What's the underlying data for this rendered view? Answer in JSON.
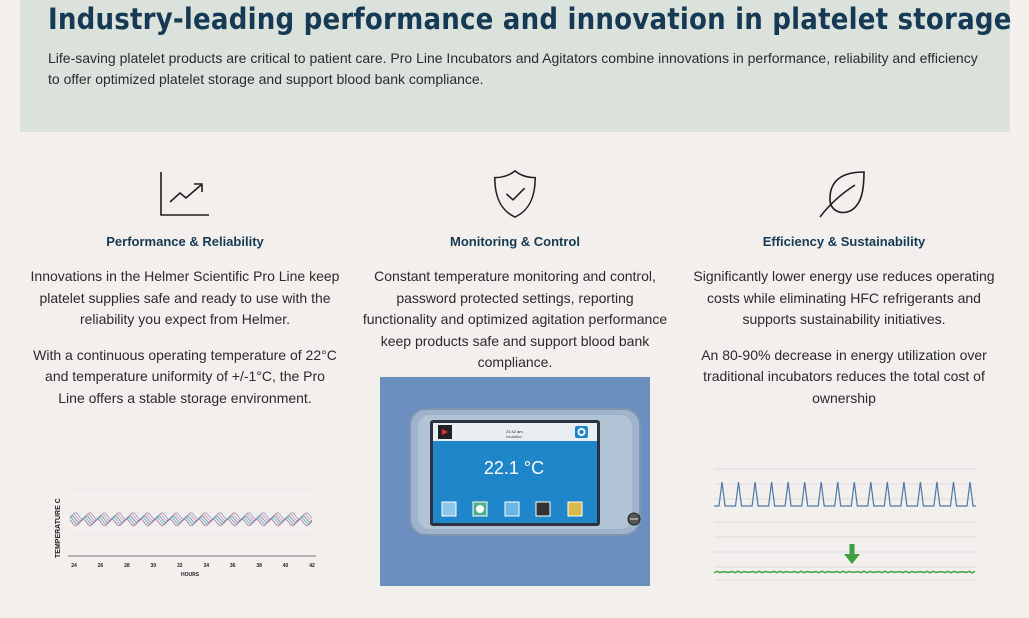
{
  "hero": {
    "title": "Industry-leading performance and innovation in platelet storage",
    "description": "Life-saving platelet products are critical to patient care. Pro Line Incubators and Agitators combine innovations in performance, reliability and efficiency to offer optimized platelet storage and support blood bank compliance."
  },
  "features": [
    {
      "icon": "trend-chart-icon",
      "title": "Performance & Reliability",
      "text1": "Innovations in the Helmer Scientific Pro Line keep platelet supplies safe and ready to use with the reliability you expect from Helmer.",
      "text2": "With a continuous operating temperature of 22°C and temperature uniformity of +/-1°C, the Pro Line offers a stable storage environment."
    },
    {
      "icon": "shield-check-icon",
      "title": "Monitoring & Control",
      "text1": "Constant temperature monitoring and control, password protected settings, reporting functionality and optimized agitation performance keep products safe and support blood bank compliance."
    },
    {
      "icon": "leaf-icon",
      "title": "Efficiency & Sustainability",
      "text1": "Significantly lower energy use reduces operating costs while eliminating HFC refrigerants and supports sustainability initiatives.",
      "text2": "An 80-90% decrease in energy utilization over traditional incubators reduces the total cost of ownership"
    }
  ],
  "chart_data": [
    {
      "type": "line",
      "ylabel": "TEMPERATURE C",
      "xlabel": "HOURS",
      "x_ticks": [
        "24",
        "26",
        "28",
        "30",
        "32",
        "34",
        "36",
        "38",
        "40",
        "42"
      ],
      "xlim": [
        24,
        42
      ],
      "series_colors": [
        "#a7a3c6",
        "#d89ab8",
        "#6f93c4",
        "#69b3a6",
        "#b07bb0"
      ]
    },
    {
      "type": "line",
      "peaks": 16,
      "colors": {
        "peaks": "#4f7aa8",
        "baseline": "#4aa44a",
        "arrow": "#3f9e3f"
      }
    }
  ],
  "controller": {
    "temperature": "22.1 °C",
    "time": "21:42 am",
    "status": "Incubation"
  },
  "colors": {
    "heading": "#163a55",
    "hero_bg": "#dbe2db",
    "page_bg": "#f2efec",
    "panel_bg": "#6b8fbe",
    "screen_bg": "#1f86c9"
  }
}
